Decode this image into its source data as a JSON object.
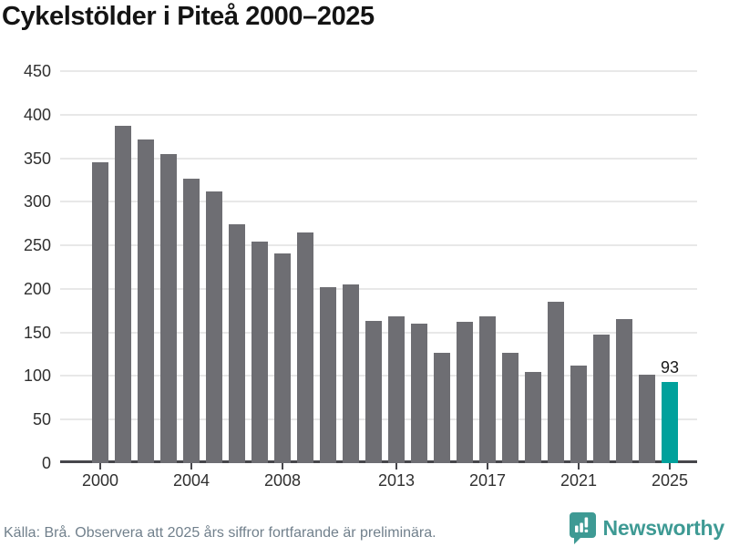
{
  "page": {
    "title": "Cykelstölder i Piteå 2000–2025"
  },
  "footer": {
    "source": "Källa: Brå. Observera att 2025 års siffror fortfarande är preliminära.",
    "brand": "Newsworthy"
  },
  "colors": {
    "background": "#ffffff",
    "bar": "#6e6e73",
    "highlight": "#00a19c",
    "grid": "#e8e8e8",
    "axis": "#46464b",
    "tick_text": "#303030",
    "title": "#141414",
    "annotation": "#1a1a1a",
    "footer_text": "#71808c",
    "brand": "#3e9a94"
  },
  "icons": {
    "logo": "newsworthy-speech-bubble-bar-chart-icon"
  },
  "chart_data": {
    "type": "bar",
    "title": "Cykelstölder i Piteå 2000–2025",
    "xlabel": "",
    "ylabel": "",
    "categories": [
      2000,
      2001,
      2002,
      2003,
      2004,
      2005,
      2006,
      2007,
      2008,
      2009,
      2010,
      2011,
      2012,
      2013,
      2014,
      2015,
      2016,
      2017,
      2018,
      2019,
      2020,
      2021,
      2022,
      2023,
      2024,
      2025
    ],
    "values": [
      345,
      387,
      372,
      355,
      327,
      312,
      274,
      254,
      241,
      265,
      202,
      205,
      163,
      168,
      160,
      127,
      162,
      169,
      127,
      105,
      185,
      112,
      148,
      165,
      102,
      93
    ],
    "ylim": [
      0,
      450
    ],
    "yticks": [
      0,
      50,
      100,
      150,
      200,
      250,
      300,
      350,
      400,
      450
    ],
    "xticks": [
      2000,
      2004,
      2008,
      2013,
      2017,
      2021,
      2025
    ],
    "grid": true,
    "legend_position": "none",
    "highlight": {
      "year": 2025,
      "color": "#00a19c"
    },
    "annotation": {
      "year": 2025,
      "text": "93"
    }
  }
}
